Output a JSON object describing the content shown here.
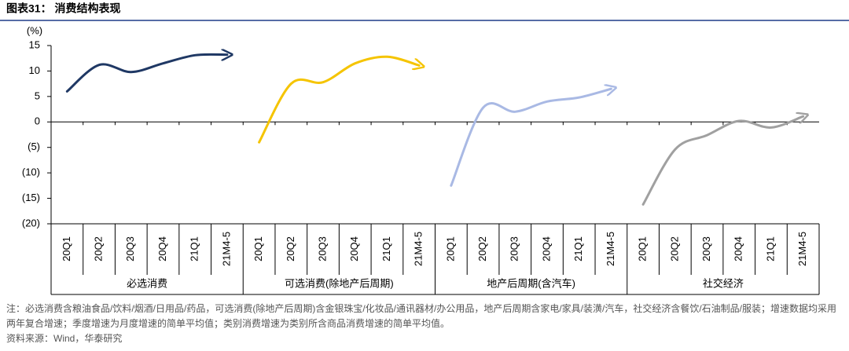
{
  "chart_data": {
    "type": "line",
    "title": "图表31：  消费结构表现",
    "y_label": "(%)",
    "ylim": [
      -20,
      15
    ],
    "yticks": [
      15,
      10,
      5,
      0,
      {
        "value": -5,
        "label": "(5)"
      },
      {
        "value": -10,
        "label": "(10)"
      },
      {
        "value": -15,
        "label": "(15)"
      },
      {
        "value": -20,
        "label": "(20)"
      }
    ],
    "groups": [
      {
        "name": "必选消费",
        "color": "#1f3864",
        "categories": [
          "20Q1",
          "20Q2",
          "20Q3",
          "20Q4",
          "21Q1",
          "21M4-5"
        ],
        "values": [
          6.0,
          11.2,
          9.8,
          11.5,
          13.1,
          13.2
        ]
      },
      {
        "name": "可选消费(除地产后周期)",
        "color": "#f5c400",
        "categories": [
          "20Q1",
          "20Q2",
          "20Q3",
          "20Q4",
          "21Q1",
          "21M4-5"
        ],
        "values": [
          -4.0,
          7.5,
          7.8,
          11.5,
          12.8,
          11.1
        ]
      },
      {
        "name": "地产后周期(含汽车)",
        "color": "#a9b9e4",
        "categories": [
          "20Q1",
          "20Q2",
          "20Q3",
          "20Q4",
          "21Q1",
          "21M4-5"
        ],
        "values": [
          -12.5,
          2.8,
          2.0,
          4.0,
          4.8,
          6.5
        ]
      },
      {
        "name": "社交经济",
        "color": "#a0a0a0",
        "categories": [
          "20Q1",
          "20Q2",
          "20Q3",
          "20Q4",
          "21Q1",
          "21M4-5"
        ],
        "values": [
          -16.2,
          -5.4,
          -2.6,
          0.2,
          -1.1,
          1.1
        ]
      }
    ],
    "note": "注：必选消费含粮油食品/饮料/烟酒/日用品/药品，可选消费(除地产后周期)含金银珠宝/化妆品/通讯器材/办公用品，地产后周期含家电/家具/装潢/汽车，社交经济含餐饮/石油制品/服装；增速数据均采用两年复合增速；季度增速为月度增速的简单平均值；类别消费增速为类别所含商品消费增速的简单平均值。",
    "source": "资料来源：Wind，华泰研究"
  }
}
